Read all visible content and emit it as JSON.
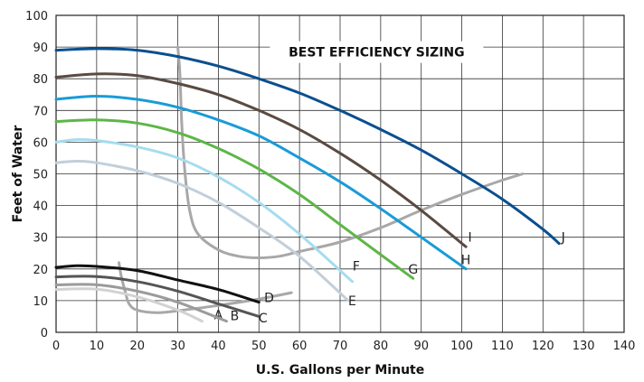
{
  "chart_data": {
    "type": "line",
    "xlabel": "U.S. Gallons per Minute",
    "ylabel": "Feet of Water",
    "annotation": "BEST EFFICIENCY SIZING",
    "xlim": [
      0,
      140
    ],
    "ylim": [
      0,
      100
    ],
    "x_ticks": [
      0,
      10,
      20,
      30,
      40,
      50,
      60,
      70,
      80,
      90,
      100,
      110,
      120,
      130,
      140
    ],
    "y_ticks": [
      0,
      10,
      20,
      30,
      40,
      50,
      60,
      70,
      80,
      90,
      100
    ],
    "grid": true,
    "series": [
      {
        "name": "A",
        "color": "#d2d2d2",
        "label_at": [
          40,
          5.5
        ],
        "points": [
          [
            0,
            13.5
          ],
          [
            10,
            13.6
          ],
          [
            20,
            11.2
          ],
          [
            30,
            7
          ],
          [
            36,
            3.5
          ]
        ]
      },
      {
        "name": "B",
        "color": "#9b9b9b",
        "label_at": [
          44,
          5.2
        ],
        "points": [
          [
            0,
            15
          ],
          [
            10,
            15
          ],
          [
            20,
            13
          ],
          [
            30,
            9.5
          ],
          [
            42,
            3.5
          ]
        ]
      },
      {
        "name": "C",
        "color": "#555555",
        "label_at": [
          51,
          4.5
        ],
        "points": [
          [
            0,
            17.5
          ],
          [
            10,
            17.6
          ],
          [
            20,
            16
          ],
          [
            30,
            13
          ],
          [
            40,
            9
          ],
          [
            50,
            5
          ]
        ]
      },
      {
        "name": "D",
        "color": "#111111",
        "label_at": [
          52.5,
          11
        ],
        "points": [
          [
            0,
            20.5
          ],
          [
            5,
            21
          ],
          [
            10,
            20.8
          ],
          [
            20,
            19.5
          ],
          [
            30,
            16.5
          ],
          [
            40,
            13.5
          ],
          [
            50,
            9.5
          ]
        ]
      },
      {
        "name": "E",
        "color": "#c2cfda",
        "label_at": [
          73,
          10
        ],
        "points": [
          [
            0,
            53.5
          ],
          [
            5,
            54
          ],
          [
            10,
            53.5
          ],
          [
            20,
            51
          ],
          [
            30,
            47
          ],
          [
            40,
            41
          ],
          [
            50,
            33
          ],
          [
            60,
            24
          ],
          [
            72,
            10
          ]
        ]
      },
      {
        "name": "F",
        "color": "#a6dcee",
        "label_at": [
          74,
          21
        ],
        "points": [
          [
            0,
            60
          ],
          [
            5,
            60.8
          ],
          [
            10,
            60.5
          ],
          [
            20,
            58.5
          ],
          [
            30,
            55
          ],
          [
            40,
            49
          ],
          [
            50,
            41
          ],
          [
            60,
            31
          ],
          [
            73,
            16
          ]
        ]
      },
      {
        "name": "G",
        "color": "#5db647",
        "label_at": [
          88,
          20
        ],
        "points": [
          [
            0,
            66.5
          ],
          [
            10,
            67
          ],
          [
            20,
            66
          ],
          [
            30,
            63
          ],
          [
            40,
            58
          ],
          [
            50,
            51.5
          ],
          [
            60,
            43.5
          ],
          [
            70,
            34
          ],
          [
            80,
            24.5
          ],
          [
            88,
            17
          ]
        ]
      },
      {
        "name": "H",
        "color": "#1a9bd7",
        "label_at": [
          101,
          23
        ],
        "points": [
          [
            0,
            73.5
          ],
          [
            10,
            74.5
          ],
          [
            20,
            73.5
          ],
          [
            30,
            71
          ],
          [
            40,
            67
          ],
          [
            50,
            62
          ],
          [
            60,
            55
          ],
          [
            70,
            47.5
          ],
          [
            80,
            39
          ],
          [
            90,
            30
          ],
          [
            101,
            20
          ]
        ]
      },
      {
        "name": "I",
        "color": "#5a4a42",
        "label_at": [
          102,
          30
        ],
        "points": [
          [
            0,
            80.5
          ],
          [
            10,
            81.5
          ],
          [
            20,
            81
          ],
          [
            30,
            78.5
          ],
          [
            40,
            75
          ],
          [
            50,
            70
          ],
          [
            60,
            64
          ],
          [
            70,
            56.5
          ],
          [
            80,
            48
          ],
          [
            90,
            38.5
          ],
          [
            101,
            27
          ]
        ]
      },
      {
        "name": "J",
        "color": "#0a4f8f",
        "label_at": [
          125,
          30
        ],
        "points": [
          [
            0,
            89
          ],
          [
            10,
            89.5
          ],
          [
            20,
            89
          ],
          [
            30,
            87
          ],
          [
            40,
            84
          ],
          [
            50,
            80
          ],
          [
            60,
            75.5
          ],
          [
            70,
            70
          ],
          [
            80,
            64
          ],
          [
            90,
            57.5
          ],
          [
            100,
            50
          ],
          [
            110,
            42
          ],
          [
            120,
            32.5
          ],
          [
            124,
            28
          ]
        ]
      }
    ],
    "efficiency_curves": [
      {
        "color": "#a8a8a8",
        "points": [
          [
            15.5,
            22
          ],
          [
            16,
            18
          ],
          [
            17,
            13
          ],
          [
            18,
            9
          ],
          [
            20,
            7
          ],
          [
            25,
            6.2
          ],
          [
            30,
            6.8
          ],
          [
            40,
            8.5
          ],
          [
            50,
            10.5
          ],
          [
            58,
            12.5
          ]
        ]
      },
      {
        "color": "#a8a8a8",
        "points": [
          [
            30,
            90
          ],
          [
            30.5,
            82
          ],
          [
            31,
            65
          ],
          [
            31.8,
            50
          ],
          [
            33,
            38
          ],
          [
            35,
            31
          ],
          [
            40,
            26
          ],
          [
            45,
            24
          ],
          [
            50,
            23.5
          ],
          [
            55,
            24
          ],
          [
            60,
            25.5
          ],
          [
            70,
            28.5
          ],
          [
            80,
            33
          ],
          [
            90,
            38.5
          ],
          [
            100,
            43.5
          ],
          [
            110,
            48
          ],
          [
            115,
            50
          ]
        ]
      }
    ]
  }
}
